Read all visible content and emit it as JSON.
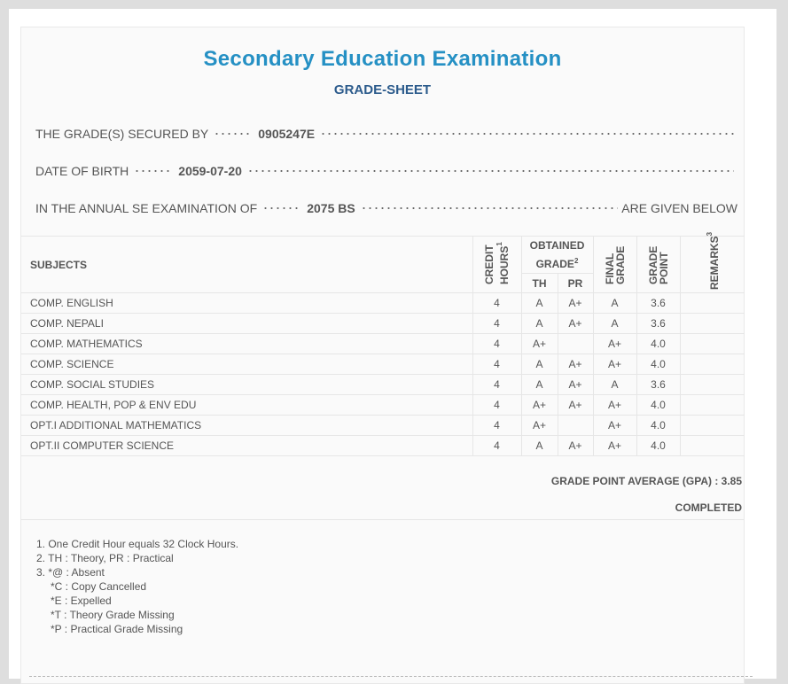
{
  "header": {
    "title": "Secondary Education Examination",
    "subtitle": "GRADE-SHEET"
  },
  "info": [
    {
      "label": "THE GRADE(S) SECURED BY",
      "value": "0905247E"
    },
    {
      "label": "DATE OF BIRTH",
      "value": "2059-07-20"
    },
    {
      "label": "IN THE ANNUAL SE EXAMINATION OF",
      "value": "2075 BS",
      "suffix": "ARE GIVEN BELOW"
    }
  ],
  "table": {
    "columns": [
      {
        "label": "SUBJECTS"
      },
      {
        "label": "CREDIT HOURS",
        "note": "1"
      },
      {
        "label": "OBTAINED GRADE",
        "note": "2",
        "sub": [
          "TH",
          "PR"
        ]
      },
      {
        "label": "FINAL GRADE"
      },
      {
        "label": "GRADE POINT"
      },
      {
        "label": "REMARKS",
        "note": "3"
      }
    ],
    "rows": [
      [
        "COMP. ENGLISH",
        "4",
        "A",
        "A+",
        "A",
        "3.6",
        null
      ],
      [
        "COMP. NEPALI",
        "4",
        "A",
        "A+",
        "A",
        "3.6",
        null
      ],
      [
        "COMP. MATHEMATICS",
        "4",
        "A+",
        null,
        "A+",
        "4.0",
        null
      ],
      [
        "COMP. SCIENCE",
        "4",
        "A",
        "A+",
        "A+",
        "4.0",
        null
      ],
      [
        "COMP. SOCIAL STUDIES",
        "4",
        "A",
        "A+",
        "A",
        "3.6",
        null
      ],
      [
        "COMP. HEALTH, POP & ENV EDU",
        "4",
        "A+",
        "A+",
        "A+",
        "4.0",
        null
      ],
      [
        "OPT.I ADDITIONAL MATHEMATICS",
        "4",
        "A+",
        null,
        "A+",
        "4.0",
        null
      ],
      [
        "OPT.II COMPUTER SCIENCE",
        "4",
        "A",
        "A+",
        "A+",
        "4.0",
        null
      ]
    ]
  },
  "summary": {
    "gpa": "GRADE POINT AVERAGE (GPA) : 3.85",
    "status": "COMPLETED"
  },
  "notes": [
    {
      "text": "1. One Credit Hour equals 32 Clock Hours."
    },
    {
      "text": "2. TH : Theory, PR : Practical"
    },
    {
      "text": "3. *@ : Absent",
      "sub": [
        "*C : Copy Cancelled",
        "*E : Expelled",
        "*T : Theory Grade Missing",
        "*P : Practical Grade Missing"
      ]
    }
  ]
}
